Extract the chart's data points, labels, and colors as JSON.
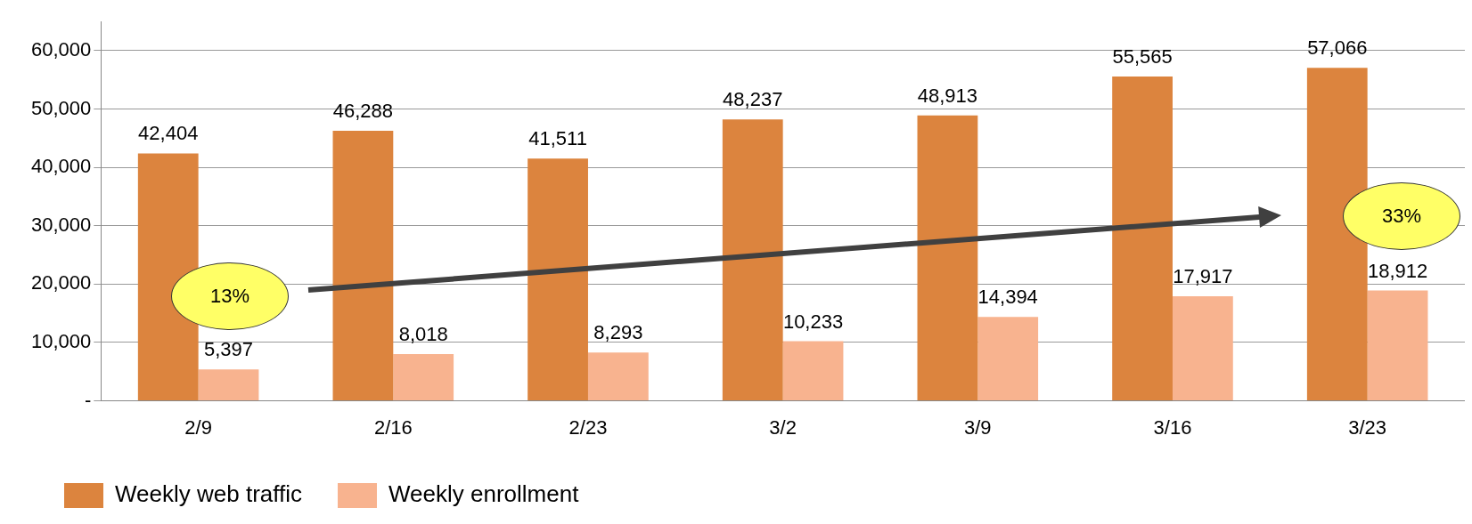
{
  "chart_data": {
    "type": "bar",
    "categories": [
      "2/9",
      "2/16",
      "2/23",
      "3/2",
      "3/9",
      "3/16",
      "3/23"
    ],
    "series": [
      {
        "name": "Weekly web traffic",
        "color": "#dc843e",
        "values": [
          42404,
          46288,
          41511,
          48237,
          48913,
          55565,
          57066
        ],
        "value_labels": [
          "42,404",
          "46,288",
          "41,511",
          "48,237",
          "48,913",
          "55,565",
          "57,066"
        ]
      },
      {
        "name": "Weekly enrollment",
        "color": "#f8b38f",
        "values": [
          5397,
          8018,
          8293,
          10233,
          14394,
          17917,
          18912
        ],
        "value_labels": [
          "5,397",
          "8,018",
          "8,293",
          "10,233",
          "14,394",
          "17,917",
          "18,912"
        ]
      }
    ],
    "ylim": [
      0,
      65000
    ],
    "yticks": [
      {
        "value": 0,
        "label": "-"
      },
      {
        "value": 10000,
        "label": "10,000"
      },
      {
        "value": 20000,
        "label": "20,000"
      },
      {
        "value": 30000,
        "label": "30,000"
      },
      {
        "value": 40000,
        "label": "40,000"
      },
      {
        "value": 50000,
        "label": "50,000"
      },
      {
        "value": 60000,
        "label": "60,000"
      }
    ],
    "grid": "y",
    "legend": "bottom",
    "annotations": [
      "13%",
      "33%"
    ]
  }
}
